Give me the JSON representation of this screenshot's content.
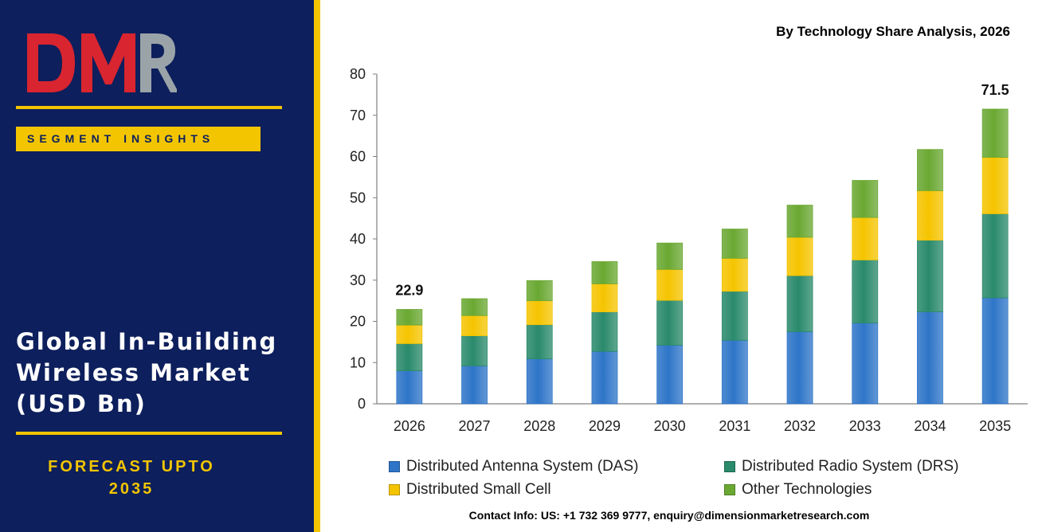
{
  "brand": {
    "logo_text": "DMR",
    "segment_label": "SEGMENT INSIGHTS",
    "colors": {
      "panel": "#0d1f5c",
      "accent": "#f2c500",
      "logo_red": "#d9252f",
      "logo_gray": "#9aa3a8"
    }
  },
  "market": {
    "title_lines": [
      "Global In-Building",
      "Wireless Market",
      "(USD Bn)"
    ],
    "forecast_lines": [
      "FORECAST UPTO",
      "2035"
    ]
  },
  "chart_data": {
    "type": "bar",
    "stacked": true,
    "title": "By Technology Share Analysis, 2026",
    "categories": [
      "2026",
      "2027",
      "2028",
      "2029",
      "2030",
      "2031",
      "2032",
      "2033",
      "2034",
      "2035"
    ],
    "series": [
      {
        "name": "Distributed Antenna System (DAS)",
        "color": "#2e75c8",
        "values": [
          8.0,
          9.2,
          10.9,
          12.7,
          14.2,
          15.4,
          17.5,
          19.6,
          22.3,
          25.7
        ]
      },
      {
        "name": "Distributed Radio System (DRS)",
        "color": "#2a8a6b",
        "values": [
          6.6,
          7.3,
          8.3,
          9.6,
          10.9,
          11.9,
          13.6,
          15.3,
          17.4,
          20.4
        ]
      },
      {
        "name": "Distributed Small Cell",
        "color": "#f5c400",
        "values": [
          4.5,
          4.9,
          5.8,
          6.8,
          7.5,
          8.0,
          9.3,
          10.3,
          12.0,
          13.7
        ]
      },
      {
        "name": "Other Technologies",
        "color": "#6aa832",
        "values": [
          3.8,
          4.1,
          4.9,
          5.4,
          6.4,
          7.1,
          7.8,
          9.0,
          10.0,
          11.7
        ]
      }
    ],
    "ylim": [
      0,
      80
    ],
    "yticks": [
      0,
      10,
      20,
      30,
      40,
      50,
      60,
      70,
      80
    ],
    "data_labels": [
      {
        "category": "2026",
        "text": "22.9"
      },
      {
        "category": "2035",
        "text": "71.5"
      }
    ],
    "xlabel": "",
    "ylabel": "",
    "grid": false,
    "legend_position": "bottom"
  },
  "footer": {
    "contact": "Contact Info: US: +1 732 369 9777, enquiry@dimensionmarketresearch.com"
  }
}
